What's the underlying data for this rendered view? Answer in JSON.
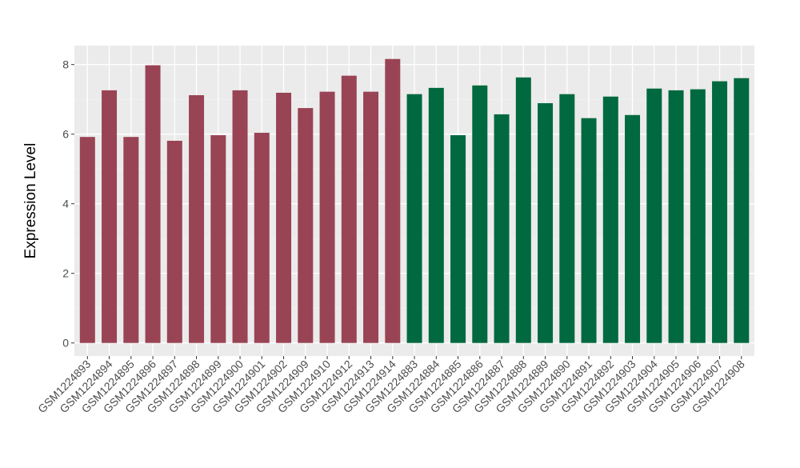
{
  "chart_data": {
    "type": "bar",
    "title": "",
    "xlabel": "",
    "ylabel": "Expression Level",
    "ylim": [
      0,
      8.6
    ],
    "yticks": [
      0,
      2,
      4,
      6,
      8
    ],
    "grid": true,
    "legend": "none",
    "categories": [
      "GSM1224893",
      "GSM1224894",
      "GSM1224895",
      "GSM1224896",
      "GSM1224897",
      "GSM1224898",
      "GSM1224899",
      "GSM1224900",
      "GSM1224901",
      "GSM1224902",
      "GSM1224909",
      "GSM1224910",
      "GSM1224912",
      "GSM1224913",
      "GSM1224914",
      "GSM1224883",
      "GSM1224884",
      "GSM1224885",
      "GSM1224886",
      "GSM1224887",
      "GSM1224888",
      "GSM1224889",
      "GSM1224890",
      "GSM1224891",
      "GSM1224892",
      "GSM1224903",
      "GSM1224904",
      "GSM1224905",
      "GSM1224906",
      "GSM1224907",
      "GSM1224908"
    ],
    "values": [
      5.92,
      7.26,
      5.92,
      7.98,
      5.81,
      7.12,
      5.97,
      7.26,
      6.04,
      7.19,
      6.75,
      7.22,
      7.68,
      7.22,
      8.16,
      7.15,
      7.33,
      5.97,
      7.4,
      6.57,
      7.63,
      6.89,
      7.15,
      6.46,
      7.08,
      6.55,
      7.31,
      7.26,
      7.29,
      7.52,
      7.61
    ],
    "groups": [
      0,
      0,
      0,
      0,
      0,
      0,
      0,
      0,
      0,
      0,
      0,
      0,
      0,
      0,
      0,
      1,
      1,
      1,
      1,
      1,
      1,
      1,
      1,
      1,
      1,
      1,
      1,
      1,
      1,
      1,
      1
    ],
    "group_colors": [
      "#994455",
      "#00693f"
    ]
  }
}
